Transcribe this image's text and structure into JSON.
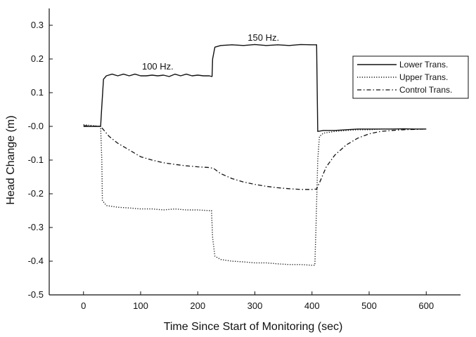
{
  "chart_data": {
    "type": "line",
    "title": "",
    "xlabel": "Time Since Start of Monitoring (sec)",
    "ylabel": "Head Change (m)",
    "xlim": [
      -60,
      660
    ],
    "ylim": [
      -0.5,
      0.35
    ],
    "x_ticks": [
      0,
      100,
      200,
      300,
      400,
      500,
      600
    ],
    "y_ticks": [
      0.3,
      0.2,
      0.1,
      0.0,
      -0.1,
      -0.2,
      -0.3,
      -0.4,
      -0.5
    ],
    "x_tick_labels": [
      "0",
      "100",
      "200",
      "300",
      "400",
      "500",
      "600"
    ],
    "y_tick_labels": [
      "0.3",
      "0.2",
      "0.1",
      "-0.0",
      "-0.1",
      "-0.2",
      "-0.3",
      "-0.4",
      "-0.5"
    ],
    "grid": false,
    "legend": {
      "position": "top-right",
      "entries": [
        "Lower Trans.",
        "Upper Trans.",
        "Control Trans."
      ]
    },
    "annotations": [
      {
        "text": "100 Hz.",
        "x": 130,
        "y": 0.165
      },
      {
        "text": "150 Hz.",
        "x": 315,
        "y": 0.25
      }
    ],
    "series": [
      {
        "name": "Lower Trans.",
        "style": "solid",
        "points": [
          [
            0,
            0.0
          ],
          [
            30,
            0.0
          ],
          [
            32,
            0.06
          ],
          [
            35,
            0.14
          ],
          [
            40,
            0.15
          ],
          [
            50,
            0.155
          ],
          [
            60,
            0.15
          ],
          [
            70,
            0.155
          ],
          [
            80,
            0.15
          ],
          [
            90,
            0.155
          ],
          [
            100,
            0.15
          ],
          [
            110,
            0.15
          ],
          [
            120,
            0.152
          ],
          [
            130,
            0.15
          ],
          [
            140,
            0.152
          ],
          [
            150,
            0.148
          ],
          [
            160,
            0.155
          ],
          [
            170,
            0.15
          ],
          [
            180,
            0.155
          ],
          [
            190,
            0.15
          ],
          [
            200,
            0.152
          ],
          [
            210,
            0.15
          ],
          [
            220,
            0.15
          ],
          [
            225,
            0.148
          ],
          [
            226,
            0.2
          ],
          [
            230,
            0.235
          ],
          [
            240,
            0.24
          ],
          [
            260,
            0.242
          ],
          [
            280,
            0.24
          ],
          [
            300,
            0.243
          ],
          [
            320,
            0.24
          ],
          [
            340,
            0.242
          ],
          [
            360,
            0.24
          ],
          [
            380,
            0.243
          ],
          [
            400,
            0.242
          ],
          [
            408,
            0.242
          ],
          [
            410,
            -0.015
          ],
          [
            420,
            -0.012
          ],
          [
            440,
            -0.012
          ],
          [
            460,
            -0.01
          ],
          [
            480,
            -0.008
          ],
          [
            500,
            -0.008
          ],
          [
            520,
            -0.008
          ],
          [
            540,
            -0.008
          ],
          [
            560,
            -0.007
          ],
          [
            580,
            -0.008
          ],
          [
            600,
            -0.008
          ]
        ]
      },
      {
        "name": "Upper Trans.",
        "style": "dotted",
        "points": [
          [
            0,
            0.005
          ],
          [
            30,
            0.0
          ],
          [
            32,
            -0.1
          ],
          [
            33,
            -0.22
          ],
          [
            40,
            -0.235
          ],
          [
            60,
            -0.24
          ],
          [
            80,
            -0.242
          ],
          [
            100,
            -0.245
          ],
          [
            120,
            -0.245
          ],
          [
            140,
            -0.248
          ],
          [
            160,
            -0.245
          ],
          [
            180,
            -0.248
          ],
          [
            200,
            -0.248
          ],
          [
            220,
            -0.25
          ],
          [
            224,
            -0.25
          ],
          [
            226,
            -0.33
          ],
          [
            230,
            -0.385
          ],
          [
            240,
            -0.395
          ],
          [
            260,
            -0.4
          ],
          [
            280,
            -0.402
          ],
          [
            300,
            -0.405
          ],
          [
            320,
            -0.405
          ],
          [
            340,
            -0.408
          ],
          [
            360,
            -0.41
          ],
          [
            380,
            -0.41
          ],
          [
            400,
            -0.412
          ],
          [
            405,
            -0.412
          ],
          [
            407,
            -0.3
          ],
          [
            410,
            -0.1
          ],
          [
            413,
            -0.03
          ],
          [
            420,
            -0.02
          ],
          [
            440,
            -0.015
          ],
          [
            460,
            -0.012
          ],
          [
            480,
            -0.01
          ],
          [
            500,
            -0.01
          ],
          [
            520,
            -0.008
          ],
          [
            540,
            -0.008
          ],
          [
            560,
            -0.008
          ],
          [
            580,
            -0.008
          ],
          [
            600,
            -0.008
          ]
        ]
      },
      {
        "name": "Control Trans.",
        "style": "dash-dot",
        "points": [
          [
            0,
            0.002
          ],
          [
            30,
            0.0
          ],
          [
            35,
            -0.01
          ],
          [
            45,
            -0.03
          ],
          [
            60,
            -0.05
          ],
          [
            80,
            -0.07
          ],
          [
            100,
            -0.09
          ],
          [
            120,
            -0.1
          ],
          [
            140,
            -0.108
          ],
          [
            160,
            -0.113
          ],
          [
            180,
            -0.117
          ],
          [
            200,
            -0.12
          ],
          [
            220,
            -0.122
          ],
          [
            228,
            -0.125
          ],
          [
            240,
            -0.14
          ],
          [
            260,
            -0.155
          ],
          [
            280,
            -0.165
          ],
          [
            300,
            -0.172
          ],
          [
            320,
            -0.178
          ],
          [
            340,
            -0.182
          ],
          [
            360,
            -0.185
          ],
          [
            380,
            -0.187
          ],
          [
            400,
            -0.187
          ],
          [
            408,
            -0.186
          ],
          [
            415,
            -0.16
          ],
          [
            425,
            -0.12
          ],
          [
            440,
            -0.085
          ],
          [
            460,
            -0.055
          ],
          [
            480,
            -0.035
          ],
          [
            500,
            -0.022
          ],
          [
            520,
            -0.015
          ],
          [
            540,
            -0.012
          ],
          [
            560,
            -0.01
          ],
          [
            580,
            -0.009
          ],
          [
            600,
            -0.008
          ]
        ]
      }
    ]
  }
}
